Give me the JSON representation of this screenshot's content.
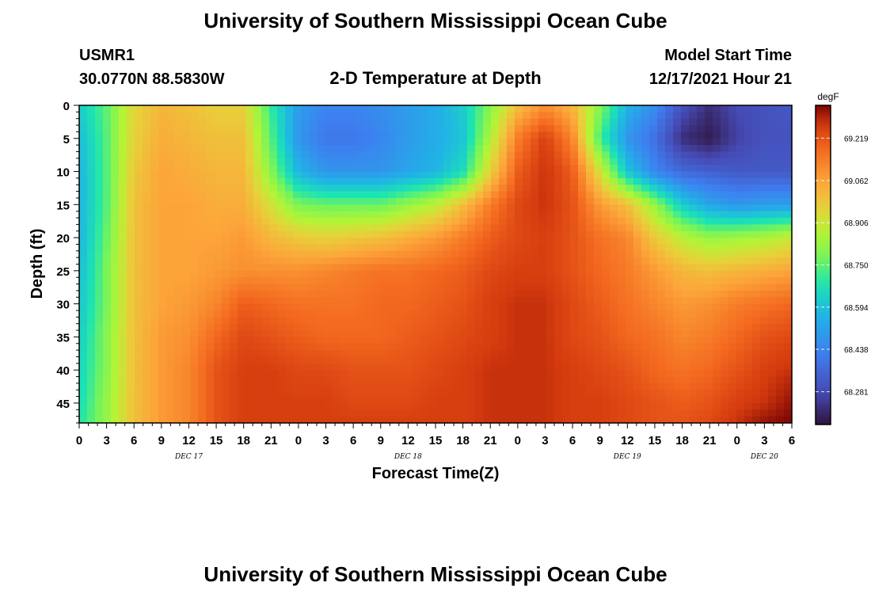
{
  "header": {
    "title": "University of Southern Mississippi Ocean Cube",
    "station": "USMR1",
    "location": "30.0770N  88.5830W",
    "subtitle": "2-D Temperature at Depth",
    "model_start_label": "Model Start Time",
    "model_start_value": "12/17/2021 Hour 21"
  },
  "footer": {
    "title": "University of Southern Mississippi Ocean Cube"
  },
  "chart_data": {
    "type": "heatmap",
    "xlabel": "Forecast Time(Z)",
    "ylabel": "Depth (ft)",
    "x_range_hours": [
      0,
      78
    ],
    "y_range_ft": [
      0,
      48
    ],
    "x_tick_labels": [
      "0",
      "3",
      "6",
      "9",
      "12",
      "15",
      "18",
      "21",
      "0",
      "3",
      "6",
      "9",
      "12",
      "15",
      "18",
      "21",
      "0",
      "3",
      "6",
      "9",
      "12",
      "15",
      "18",
      "21",
      "0",
      "3",
      "6"
    ],
    "y_tick_labels": [
      "0",
      "5",
      "10",
      "15",
      "20",
      "25",
      "30",
      "35",
      "40",
      "45"
    ],
    "day_labels": [
      {
        "label": "DEC 17",
        "hour": 12
      },
      {
        "label": "DEC 18",
        "hour": 36
      },
      {
        "label": "DEC 19",
        "hour": 60
      },
      {
        "label": "DEC 20",
        "hour": 75
      }
    ],
    "colorbar": {
      "unit": "degF",
      "min": 68.16,
      "max": 69.34,
      "ticks": [
        "69.219",
        "69.062",
        "68.906",
        "68.750",
        "68.594",
        "68.438",
        "68.281"
      ],
      "tick_values": [
        69.219,
        69.062,
        68.906,
        68.75,
        68.594,
        68.438,
        68.281
      ]
    },
    "grid": false,
    "temperature_grid": {
      "x_hours": [
        0,
        3,
        6,
        9,
        12,
        15,
        18,
        21,
        24,
        27,
        30,
        33,
        36,
        39,
        42,
        45,
        48,
        51,
        54,
        57,
        60,
        63,
        66,
        69,
        72,
        75,
        78
      ],
      "depth_ft": [
        0,
        5,
        10,
        15,
        20,
        25,
        30,
        35,
        40,
        45,
        48
      ],
      "values_degF": [
        [
          68.62,
          68.75,
          68.95,
          69.02,
          69.0,
          68.96,
          68.96,
          68.7,
          68.5,
          68.44,
          68.44,
          68.46,
          68.5,
          68.54,
          68.62,
          68.8,
          69.0,
          69.1,
          69.02,
          68.8,
          68.56,
          68.46,
          68.3,
          68.22,
          68.28,
          68.3,
          68.32
        ],
        [
          68.58,
          68.74,
          68.96,
          69.04,
          69.02,
          69.0,
          69.0,
          68.74,
          68.48,
          68.4,
          68.4,
          68.44,
          68.5,
          68.54,
          68.6,
          68.86,
          69.14,
          69.26,
          69.12,
          68.72,
          68.48,
          68.38,
          68.22,
          68.18,
          68.26,
          68.3,
          68.3
        ],
        [
          68.56,
          68.74,
          68.98,
          69.06,
          69.04,
          69.02,
          69.02,
          68.8,
          68.56,
          68.48,
          68.48,
          68.48,
          68.52,
          68.56,
          68.66,
          68.96,
          69.2,
          69.28,
          69.2,
          68.92,
          68.6,
          68.44,
          68.36,
          68.34,
          68.32,
          68.32,
          68.32
        ],
        [
          68.56,
          68.74,
          69.0,
          69.06,
          69.06,
          69.04,
          69.04,
          68.92,
          68.78,
          68.76,
          68.76,
          68.76,
          68.82,
          68.88,
          69.0,
          69.14,
          69.24,
          69.28,
          69.22,
          69.08,
          69.0,
          68.82,
          68.62,
          68.52,
          68.48,
          68.5,
          68.5
        ],
        [
          68.56,
          68.76,
          69.0,
          69.06,
          69.06,
          69.06,
          69.08,
          69.02,
          68.98,
          68.96,
          68.98,
          69.0,
          69.04,
          69.08,
          69.14,
          69.2,
          69.24,
          69.26,
          69.22,
          69.16,
          69.12,
          68.98,
          68.88,
          68.82,
          68.84,
          68.86,
          68.9
        ],
        [
          68.58,
          68.78,
          69.0,
          69.06,
          69.06,
          69.08,
          69.1,
          69.1,
          69.1,
          69.12,
          69.14,
          69.16,
          69.16,
          69.18,
          69.2,
          69.24,
          69.26,
          69.26,
          69.22,
          69.18,
          69.14,
          69.08,
          69.02,
          69.0,
          69.02,
          69.04,
          69.06
        ],
        [
          68.6,
          68.78,
          69.0,
          69.06,
          69.08,
          69.12,
          69.2,
          69.18,
          69.16,
          69.16,
          69.16,
          69.18,
          69.18,
          69.2,
          69.22,
          69.26,
          69.28,
          69.28,
          69.24,
          69.2,
          69.16,
          69.12,
          69.08,
          69.1,
          69.14,
          69.16,
          69.18
        ],
        [
          68.62,
          68.8,
          69.0,
          69.08,
          69.1,
          69.18,
          69.24,
          69.22,
          69.2,
          69.18,
          69.18,
          69.18,
          69.2,
          69.22,
          69.24,
          69.26,
          69.28,
          69.28,
          69.24,
          69.22,
          69.18,
          69.16,
          69.12,
          69.14,
          69.18,
          69.22,
          69.24
        ],
        [
          68.64,
          68.8,
          69.0,
          69.08,
          69.12,
          69.22,
          69.26,
          69.26,
          69.24,
          69.24,
          69.22,
          69.22,
          69.22,
          69.24,
          69.26,
          69.28,
          69.28,
          69.28,
          69.26,
          69.24,
          69.22,
          69.18,
          69.16,
          69.18,
          69.22,
          69.26,
          69.28
        ],
        [
          68.66,
          68.82,
          69.0,
          69.08,
          69.12,
          69.22,
          69.26,
          69.26,
          69.26,
          69.26,
          69.24,
          69.24,
          69.24,
          69.26,
          69.26,
          69.28,
          69.28,
          69.28,
          69.26,
          69.26,
          69.24,
          69.22,
          69.2,
          69.22,
          69.26,
          69.28,
          69.32
        ],
        [
          68.68,
          68.82,
          69.0,
          69.08,
          69.12,
          69.22,
          69.26,
          69.26,
          69.26,
          69.26,
          69.26,
          69.26,
          69.26,
          69.26,
          69.26,
          69.28,
          69.28,
          69.28,
          69.26,
          69.26,
          69.24,
          69.22,
          69.22,
          69.24,
          69.28,
          69.32,
          69.34
        ]
      ]
    }
  }
}
